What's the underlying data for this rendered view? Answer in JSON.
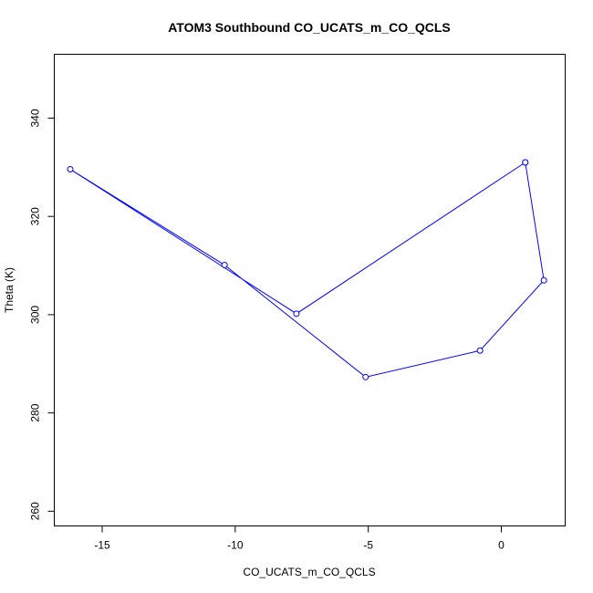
{
  "chart_data": {
    "type": "line",
    "title": "ATOM3 Southbound CO_UCATS_m_CO_QCLS",
    "xlabel": "CO_UCATS_m_CO_QCLS",
    "ylabel": "Theta (K)",
    "xlim": [
      -16.8,
      2.4
    ],
    "ylim": [
      257,
      353
    ],
    "x_ticks": [
      -15,
      -10,
      -5,
      0
    ],
    "x_tick_labels": [
      "-15",
      "-10",
      "-5",
      "0"
    ],
    "y_ticks": [
      260,
      280,
      300,
      320,
      340
    ],
    "y_tick_labels": [
      "260",
      "280",
      "300",
      "320",
      "340"
    ],
    "grid": false,
    "legend": "none",
    "colors": {
      "series": "#0000ff",
      "axes": "#000000"
    },
    "series": [
      {
        "marker": "open-circle",
        "x": [
          0.9,
          1.6,
          -0.8,
          -5.1,
          -10.4,
          -16.2,
          -7.7,
          0.9
        ],
        "y": [
          331,
          307,
          292.7,
          287.3,
          310.1,
          329.6,
          300.2,
          331
        ]
      }
    ]
  }
}
